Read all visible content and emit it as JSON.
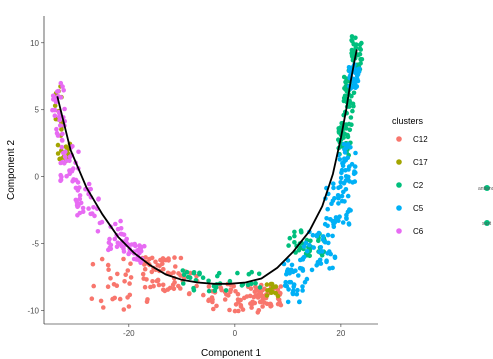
{
  "chart_data": {
    "type": "scatter",
    "xlabel": "Component 1",
    "ylabel": "Component 2",
    "xlim": [
      -36,
      27
    ],
    "ylim": [
      -11,
      12
    ],
    "x_ticks": [
      -20,
      0,
      20
    ],
    "y_ticks": [
      -10,
      -5,
      0,
      5,
      10
    ],
    "grid": false,
    "legend": {
      "title": "clusters",
      "placement": "right",
      "entries": [
        {
          "label": "C12",
          "color": "#F8766D"
        },
        {
          "label": "C17",
          "color": "#A3A500"
        },
        {
          "label": "C2",
          "color": "#00BF7D"
        },
        {
          "label": "C5",
          "color": "#00B0F6"
        },
        {
          "label": "C6",
          "color": "#E76BF3"
        }
      ]
    },
    "trajectory": {
      "x": [
        -33.5,
        -31,
        -28,
        -25,
        -22,
        -19,
        -16,
        -13,
        -10,
        -7,
        -4,
        -1,
        2,
        5,
        8,
        11,
        14,
        16.5,
        18.5,
        20,
        21,
        21.8,
        22.5,
        23
      ],
      "y": [
        6,
        2,
        -0.8,
        -2.8,
        -4.5,
        -5.7,
        -6.6,
        -7.3,
        -7.7,
        -7.9,
        -8.0,
        -8.0,
        -7.9,
        -7.6,
        -6.8,
        -5.6,
        -4.1,
        -2.2,
        0.2,
        2.9,
        5.0,
        7.0,
        8.5,
        9.5
      ]
    },
    "series": [
      {
        "name": "C12",
        "color": "#F8766D",
        "regions": [
          {
            "x": [
              -27,
              -5
            ],
            "y": [
              -10,
              -6
            ]
          },
          {
            "x": [
              -5,
              5
            ],
            "y": [
              -10.2,
              -8
            ]
          },
          {
            "x": [
              -18,
              -10
            ],
            "y": [
              -8.5,
              -6
            ]
          },
          {
            "x": [
              2,
              9
            ],
            "y": [
              -9.7,
              -8.2
            ]
          }
        ],
        "count": 190
      },
      {
        "name": "C17",
        "color": "#A3A500",
        "regions": [
          {
            "x": [
              -34,
              -32.5
            ],
            "y": [
              2.5,
              7.5
            ]
          },
          {
            "x": [
              -33.5,
              -31
            ],
            "y": [
              1,
              2.5
            ]
          },
          {
            "x": [
              6,
              9
            ],
            "y": [
              -9,
              -8
            ]
          }
        ],
        "count": 40
      },
      {
        "name": "C2",
        "color": "#00BF7D",
        "regions": [
          {
            "x": [
              22,
              24
            ],
            "y": [
              8,
              10.5
            ]
          },
          {
            "x": [
              20.5,
              22.5
            ],
            "y": [
              4,
              8
            ]
          },
          {
            "x": [
              19.5,
              22
            ],
            "y": [
              1.5,
              4
            ]
          },
          {
            "x": [
              -10,
              5
            ],
            "y": [
              -8.6,
              -7
            ]
          },
          {
            "x": [
              10,
              17
            ],
            "y": [
              -6,
              -4
            ]
          }
        ],
        "count": 180
      },
      {
        "name": "C5",
        "color": "#00B0F6",
        "regions": [
          {
            "x": [
              9,
              14
            ],
            "y": [
              -9.5,
              -6
            ]
          },
          {
            "x": [
              13,
              19
            ],
            "y": [
              -7,
              -3.5
            ]
          },
          {
            "x": [
              17,
              22
            ],
            "y": [
              -4,
              -0.5
            ]
          },
          {
            "x": [
              19.5,
              23
            ],
            "y": [
              -0.5,
              2.5
            ]
          },
          {
            "x": [
              21.5,
              23.5
            ],
            "y": [
              6.5,
              8.5
            ]
          }
        ],
        "count": 190
      },
      {
        "name": "C6",
        "color": "#E76BF3",
        "regions": [
          {
            "x": [
              -34.5,
              -32
            ],
            "y": [
              2.5,
              7
            ]
          },
          {
            "x": [
              -33,
              -29.5
            ],
            "y": [
              -0.5,
              2.5
            ]
          },
          {
            "x": [
              -30,
              -25.5
            ],
            "y": [
              -3,
              -0.5
            ]
          },
          {
            "x": [
              -26,
              -20
            ],
            "y": [
              -5.5,
              -3
            ]
          },
          {
            "x": [
              -21,
              -17
            ],
            "y": [
              -6.5,
              -5
            ]
          }
        ],
        "count": 150
      }
    ]
  },
  "side_labels": [
    "antiandrogen",
    "sust"
  ]
}
